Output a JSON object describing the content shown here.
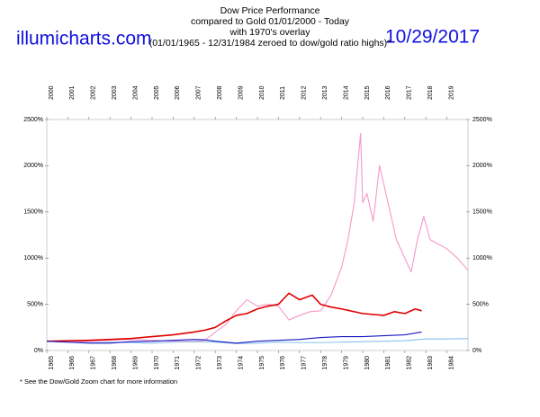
{
  "chart_data": {
    "type": "line",
    "site": "illumicharts.com",
    "date": "10/29/2017",
    "title_lines": [
      "Dow Price Performance",
      "compared to Gold 01/01/2000 - Today",
      "with 1970's overlay",
      "(01/01/1965 - 12/31/1984 zeroed to dow/gold ratio highs)*"
    ],
    "footnote": "* See the Dow/Gold Zoom chart for more information",
    "xlim": [
      1965,
      1985
    ],
    "xticks": [
      1965,
      1966,
      1967,
      1968,
      1969,
      1970,
      1971,
      1972,
      1973,
      1974,
      1975,
      1976,
      1977,
      1978,
      1979,
      1980,
      1981,
      1982,
      1983,
      1984
    ],
    "x2lim": [
      2000,
      2020
    ],
    "x2ticks": [
      2000,
      2001,
      2002,
      2003,
      2004,
      2005,
      2006,
      2007,
      2008,
      2009,
      2010,
      2011,
      2012,
      2013,
      2014,
      2015,
      2016,
      2017,
      2018,
      2019
    ],
    "ylim": [
      0,
      2500
    ],
    "yticks": [
      {
        "value": 0,
        "label": "0%"
      },
      {
        "value": 500,
        "label": "500%"
      },
      {
        "value": 1000,
        "label": "1000%"
      },
      {
        "value": 1500,
        "label": "1500%"
      },
      {
        "value": 2000,
        "label": "2000%"
      },
      {
        "value": 2500,
        "label": "2500%"
      }
    ],
    "grid": false,
    "series": [
      {
        "color": "#f598c8",
        "xaxis": "x",
        "x": [
          1965,
          1966,
          1967,
          1968,
          1969,
          1970,
          1971,
          1972,
          1972.5,
          1973,
          1973.5,
          1974,
          1974.5,
          1975,
          1975.5,
          1976,
          1976.5,
          1977,
          1977.5,
          1978,
          1978.5,
          1979,
          1979.3,
          1979.6,
          1979.9,
          1980,
          1980.2,
          1980.5,
          1980.8,
          1981.2,
          1981.6,
          1982,
          1982.3,
          1982.6,
          1982.9,
          1983.2,
          1983.6,
          1984,
          1984.5,
          1985
        ],
        "values": [
          100,
          90,
          100,
          110,
          120,
          110,
          100,
          100,
          110,
          200,
          280,
          430,
          550,
          480,
          500,
          480,
          330,
          380,
          420,
          430,
          600,
          900,
          1200,
          1600,
          2350,
          1600,
          1700,
          1400,
          2000,
          1600,
          1200,
          1000,
          850,
          1200,
          1450,
          1200,
          1150,
          1100,
          1000,
          870
        ]
      },
      {
        "color": "#88c0f0",
        "xaxis": "x",
        "x": [
          1965,
          1966,
          1967,
          1968,
          1969,
          1970,
          1971,
          1972,
          1973,
          1974,
          1975,
          1976,
          1977,
          1978,
          1979,
          1980,
          1981,
          1982,
          1983,
          1984,
          1985
        ],
        "values": [
          100,
          90,
          85,
          90,
          85,
          80,
          90,
          95,
          90,
          75,
          80,
          90,
          85,
          85,
          90,
          95,
          100,
          105,
          125,
          125,
          130
        ]
      },
      {
        "color": "#e00000",
        "xaxis": "x2",
        "x": [
          2000,
          2001,
          2002,
          2003,
          2004,
          2005,
          2006,
          2007,
          2007.5,
          2008,
          2008.5,
          2009,
          2009.5,
          2010,
          2010.5,
          2011,
          2011.5,
          2012,
          2012.6,
          2013,
          2013.5,
          2014,
          2015,
          2016,
          2016.5,
          2017,
          2017.5,
          2017.8
        ],
        "values": [
          100,
          105,
          110,
          120,
          130,
          150,
          170,
          200,
          220,
          250,
          320,
          380,
          400,
          450,
          480,
          500,
          620,
          550,
          600,
          500,
          470,
          450,
          400,
          380,
          420,
          400,
          450,
          430
        ]
      },
      {
        "color": "#1818c0",
        "xaxis": "x2",
        "x": [
          2000,
          2001,
          2002,
          2003,
          2004,
          2005,
          2006,
          2007,
          2007.5,
          2008,
          2009,
          2010,
          2011,
          2012,
          2013,
          2013.5,
          2014,
          2015,
          2016,
          2017,
          2017.8
        ],
        "values": [
          100,
          90,
          80,
          80,
          95,
          100,
          110,
          120,
          115,
          100,
          80,
          100,
          110,
          120,
          140,
          145,
          150,
          150,
          160,
          170,
          200
        ]
      }
    ]
  }
}
